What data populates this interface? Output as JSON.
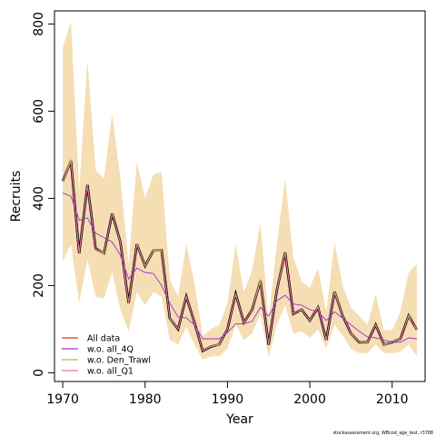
{
  "chart_data": {
    "type": "line",
    "xlabel": "Year",
    "ylabel": "Recruits",
    "xlim": [
      1969,
      2014
    ],
    "ylim": [
      -20,
      830
    ],
    "x_ticks": [
      1970,
      1980,
      1990,
      2000,
      2010
    ],
    "y_ticks": [
      0,
      200,
      400,
      600,
      800
    ],
    "grid": false,
    "legend_position": "bottom-left",
    "x": [
      1970,
      1971,
      1972,
      1973,
      1974,
      1975,
      1976,
      1977,
      1978,
      1979,
      1980,
      1981,
      1982,
      1983,
      1984,
      1985,
      1986,
      1987,
      1988,
      1989,
      1990,
      1991,
      1992,
      1993,
      1994,
      1995,
      1996,
      1997,
      1998,
      1999,
      2000,
      2001,
      2002,
      2003,
      2004,
      2005,
      2006,
      2007,
      2008,
      2009,
      2010,
      2011,
      2012,
      2013
    ],
    "band": {
      "color": "#f5deb3",
      "lower": [
        255,
        295,
        160,
        260,
        175,
        170,
        230,
        145,
        95,
        185,
        155,
        185,
        175,
        75,
        65,
        105,
        65,
        30,
        38,
        38,
        55,
        110,
        75,
        90,
        135,
        35,
        110,
        155,
        90,
        95,
        80,
        100,
        55,
        110,
        85,
        55,
        45,
        45,
        65,
        45,
        45,
        48,
        65,
        38
      ],
      "upper": [
        745,
        805,
        420,
        715,
        465,
        445,
        595,
        445,
        250,
        485,
        400,
        455,
        460,
        215,
        175,
        295,
        205,
        85,
        100,
        110,
        160,
        295,
        185,
        235,
        345,
        120,
        295,
        445,
        265,
        210,
        195,
        240,
        140,
        300,
        200,
        150,
        130,
        110,
        180,
        98,
        98,
        140,
        230,
        250
      ]
    },
    "series": [
      {
        "name": "All data",
        "color": "#e8303a",
        "values": [
          440,
          485,
          275,
          430,
          285,
          275,
          365,
          300,
          160,
          295,
          245,
          280,
          280,
          125,
          100,
          175,
          115,
          50,
          60,
          65,
          100,
          180,
          115,
          145,
          210,
          65,
          190,
          275,
          135,
          145,
          120,
          150,
          75,
          185,
          130,
          90,
          70,
          70,
          110,
          65,
          70,
          78,
          130,
          100
        ]
      },
      {
        "name": "w.o. all_4Q",
        "color": "#9a32cd",
        "values": [
          412,
          405,
          350,
          355,
          320,
          310,
          300,
          270,
          215,
          240,
          230,
          228,
          200,
          160,
          128,
          126,
          110,
          78,
          78,
          78,
          92,
          112,
          112,
          118,
          150,
          130,
          165,
          178,
          158,
          155,
          145,
          140,
          120,
          140,
          125,
          110,
          95,
          82,
          80,
          75,
          70,
          70,
          80,
          78
        ]
      },
      {
        "name": "w.o. Den_Trawl",
        "color": "#9acd32",
        "values": [
          440,
          490,
          272,
          432,
          285,
          272,
          366,
          298,
          158,
          296,
          246,
          281,
          282,
          124,
          100,
          176,
          114,
          50,
          60,
          64,
          100,
          182,
          114,
          146,
          215,
          63,
          192,
          278,
          135,
          146,
          119,
          152,
          74,
          188,
          131,
          89,
          70,
          69,
          111,
          64,
          70,
          77,
          133,
          97
        ]
      },
      {
        "name": "w.o. all_Q1",
        "color": "#ff69b4",
        "values": [
          438,
          484,
          276,
          429,
          284,
          276,
          364,
          301,
          161,
          294,
          244,
          279,
          279,
          126,
          101,
          174,
          116,
          51,
          61,
          66,
          101,
          179,
          116,
          144,
          208,
          66,
          189,
          274,
          136,
          144,
          121,
          149,
          76,
          184,
          129,
          91,
          71,
          71,
          109,
          66,
          71,
          79,
          129,
          101
        ]
      }
    ],
    "overlay_line": {
      "color": "#000000",
      "values": [
        440,
        486,
        274,
        431,
        285,
        274,
        365,
        300,
        160,
        295,
        245,
        280,
        281,
        125,
        100,
        175,
        115,
        50,
        60,
        65,
        100,
        181,
        115,
        145,
        211,
        64,
        190,
        276,
        135,
        145,
        120,
        150,
        75,
        186,
        130,
        90,
        70,
        70,
        110,
        65,
        70,
        78,
        131,
        99
      ]
    }
  },
  "footer": {
    "text": "stockassessment.org, WBcod_age_test, r3788"
  }
}
